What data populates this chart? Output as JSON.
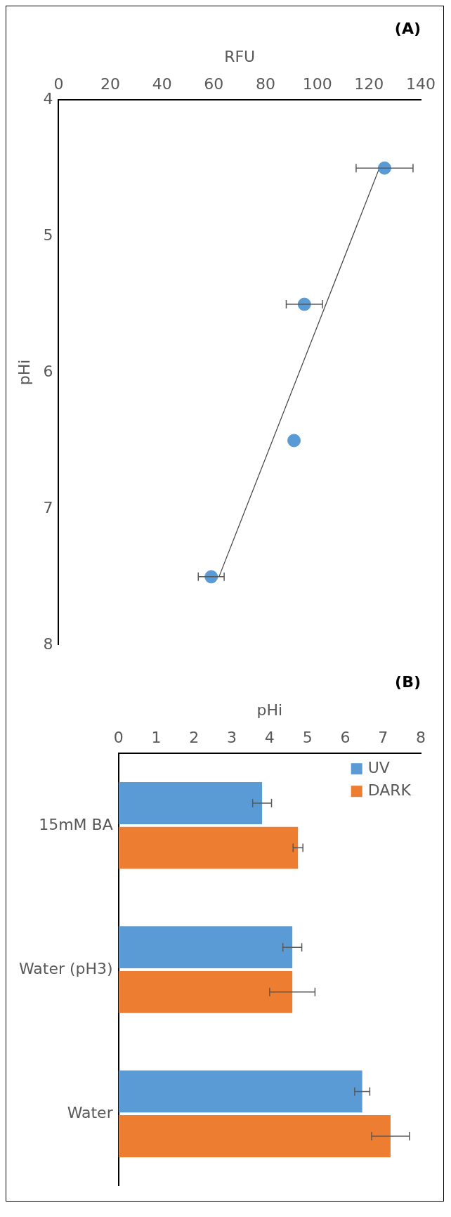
{
  "chart_data": [
    {
      "type": "scatter",
      "title": "(A)",
      "xlabel": "RFU",
      "ylabel": "pHi",
      "xlim": [
        0,
        140
      ],
      "xticks": [
        0,
        20,
        40,
        60,
        80,
        100,
        120,
        140
      ],
      "ylim": [
        8,
        4
      ],
      "yticks": [
        4,
        5,
        6,
        7,
        8
      ],
      "grid": false,
      "legend": false,
      "series": [
        {
          "type": "scatter",
          "color": "#5b9bd5",
          "marker": "circle",
          "x": [
            126,
            95,
            91,
            59
          ],
          "values": [
            4.5,
            5.5,
            6.5,
            7.5
          ],
          "xerrors": [
            11,
            7,
            null,
            5
          ]
        },
        {
          "type": "line",
          "color": "#404040",
          "marker": "none",
          "x": [
            124,
            62
          ],
          "values": [
            4.5,
            7.5
          ]
        }
      ]
    },
    {
      "type": "bar",
      "orientation": "horizontal",
      "title": "(B)",
      "xlabel": "pHi",
      "categories": [
        "15mM BA",
        "Water (pH3)",
        "Water"
      ],
      "xlim": [
        0,
        8
      ],
      "xticks": [
        0,
        1,
        2,
        3,
        4,
        5,
        6,
        7,
        8
      ],
      "grid": false,
      "legend": "top right",
      "series": [
        {
          "name": "UV",
          "color": "#5b9bd5",
          "values": [
            3.8,
            4.6,
            6.45
          ],
          "errors": [
            0.25,
            0.25,
            0.2
          ]
        },
        {
          "name": "DARK",
          "color": "#ed7d31",
          "values": [
            4.75,
            4.6,
            7.2
          ],
          "errors": [
            0.13,
            0.6,
            0.5
          ]
        }
      ]
    }
  ]
}
